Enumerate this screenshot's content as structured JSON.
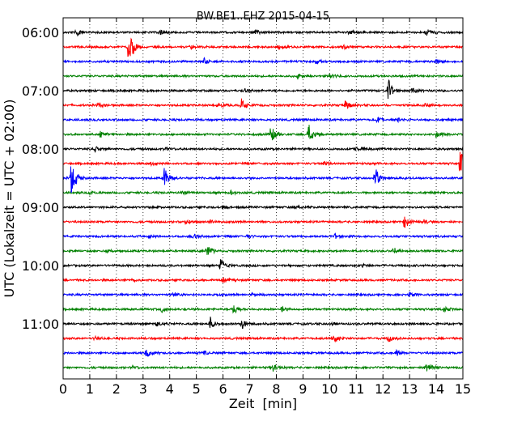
{
  "chart_data": {
    "type": "line",
    "title": "BW.BE1..EHZ 2015-04-15",
    "xlabel": "Zeit  [min]",
    "ylabel": "UTC (Lokalzeit = UTC + 02:00)",
    "xlim": [
      0,
      15
    ],
    "x_ticks": [
      0,
      1,
      2,
      3,
      4,
      5,
      6,
      7,
      8,
      9,
      10,
      11,
      12,
      13,
      14,
      15
    ],
    "x_tick_labels": [
      "0",
      "1",
      "2",
      "3",
      "4",
      "5",
      "6",
      "7",
      "8",
      "9",
      "10",
      "11",
      "12",
      "13",
      "14",
      "15"
    ],
    "y_tick_labels": [
      "06:00",
      "07:00",
      "08:00",
      "09:00",
      "10:00",
      "11:00"
    ],
    "y_tick_trace_index": [
      0,
      4,
      8,
      12,
      16,
      20
    ],
    "trace_interval_min": 15,
    "trace_colors": [
      "#000000",
      "#ff0000",
      "#0000ff",
      "#008000"
    ],
    "grid": "vertical-dotted",
    "traces": [
      {
        "start": "06:00",
        "color": "#000000",
        "events": [
          {
            "t": 0.5,
            "amp": 0.35
          },
          {
            "t": 3.6,
            "amp": 0.25
          },
          {
            "t": 7.2,
            "amp": 0.2
          },
          {
            "t": 10.7,
            "amp": 0.15
          },
          {
            "t": 13.6,
            "amp": 0.35
          }
        ]
      },
      {
        "start": "06:15",
        "color": "#ff0000",
        "events": [
          {
            "t": 2.45,
            "amp": 1.9
          },
          {
            "t": 4.8,
            "amp": 0.15
          },
          {
            "t": 8.1,
            "amp": 0.15
          },
          {
            "t": 10.5,
            "amp": 0.15
          }
        ]
      },
      {
        "start": "06:30",
        "color": "#0000ff",
        "events": [
          {
            "t": 5.3,
            "amp": 0.3
          },
          {
            "t": 9.5,
            "amp": 0.2
          },
          {
            "t": 14.0,
            "amp": 0.25
          }
        ]
      },
      {
        "start": "06:45",
        "color": "#008000",
        "events": [
          {
            "t": 8.8,
            "amp": 0.2
          },
          {
            "t": 10.0,
            "amp": 0.25
          }
        ]
      },
      {
        "start": "07:00",
        "color": "#000000",
        "events": [
          {
            "t": 6.8,
            "amp": 0.15
          },
          {
            "t": 12.2,
            "amp": 0.9
          },
          {
            "t": 13.1,
            "amp": 0.2
          }
        ]
      },
      {
        "start": "07:15",
        "color": "#ff0000",
        "events": [
          {
            "t": 1.3,
            "amp": 0.2
          },
          {
            "t": 5.8,
            "amp": 0.35
          },
          {
            "t": 6.7,
            "amp": 0.5
          },
          {
            "t": 10.6,
            "amp": 0.4
          },
          {
            "t": 13.6,
            "amp": 0.15
          }
        ]
      },
      {
        "start": "07:30",
        "color": "#0000ff",
        "events": [
          {
            "t": 11.8,
            "amp": 0.2
          },
          {
            "t": 12.5,
            "amp": 0.25
          }
        ]
      },
      {
        "start": "07:45",
        "color": "#008000",
        "events": [
          {
            "t": 1.4,
            "amp": 0.25
          },
          {
            "t": 7.8,
            "amp": 0.7
          },
          {
            "t": 9.2,
            "amp": 0.9
          },
          {
            "t": 14.0,
            "amp": 0.3
          }
        ]
      },
      {
        "start": "08:00",
        "color": "#000000",
        "events": [
          {
            "t": 1.2,
            "amp": 0.2
          },
          {
            "t": 3.8,
            "amp": 0.2
          },
          {
            "t": 11.0,
            "amp": 0.2
          }
        ]
      },
      {
        "start": "08:15",
        "color": "#ff0000",
        "events": [
          {
            "t": 3.3,
            "amp": 0.15
          },
          {
            "t": 9.8,
            "amp": 0.15
          },
          {
            "t": 14.9,
            "amp": 1.3
          }
        ]
      },
      {
        "start": "08:30",
        "color": "#0000ff",
        "events": [
          {
            "t": 0.3,
            "amp": 1.6
          },
          {
            "t": 3.8,
            "amp": 0.9
          },
          {
            "t": 11.7,
            "amp": 0.9
          }
        ]
      },
      {
        "start": "08:45",
        "color": "#008000",
        "events": [
          {
            "t": 1.0,
            "amp": 0.15
          },
          {
            "t": 4.5,
            "amp": 0.15
          },
          {
            "t": 6.3,
            "amp": 0.2
          }
        ]
      },
      {
        "start": "09:00",
        "color": "#000000",
        "events": [
          {
            "t": 6.0,
            "amp": 0.15
          },
          {
            "t": 8.7,
            "amp": 0.15
          }
        ]
      },
      {
        "start": "09:15",
        "color": "#ff0000",
        "events": [
          {
            "t": 4.6,
            "amp": 0.2
          },
          {
            "t": 5.5,
            "amp": 0.2
          },
          {
            "t": 12.8,
            "amp": 0.55
          },
          {
            "t": 13.5,
            "amp": 0.2
          }
        ]
      },
      {
        "start": "09:30",
        "color": "#0000ff",
        "events": [
          {
            "t": 3.2,
            "amp": 0.15
          },
          {
            "t": 4.9,
            "amp": 0.2
          },
          {
            "t": 6.9,
            "amp": 0.15
          },
          {
            "t": 10.2,
            "amp": 0.2
          }
        ]
      },
      {
        "start": "09:45",
        "color": "#008000",
        "events": [
          {
            "t": 1.6,
            "amp": 0.25
          },
          {
            "t": 5.4,
            "amp": 0.5
          },
          {
            "t": 12.4,
            "amp": 0.25
          }
        ]
      },
      {
        "start": "10:00",
        "color": "#000000",
        "events": [
          {
            "t": 5.9,
            "amp": 0.6
          },
          {
            "t": 11.2,
            "amp": 0.15
          }
        ]
      },
      {
        "start": "10:15",
        "color": "#ff0000",
        "events": [
          {
            "t": 2.6,
            "amp": 0.15
          },
          {
            "t": 6.0,
            "amp": 0.25
          }
        ]
      },
      {
        "start": "10:30",
        "color": "#0000ff",
        "events": [
          {
            "t": 4.1,
            "amp": 0.2
          },
          {
            "t": 7.1,
            "amp": 0.15
          },
          {
            "t": 13.0,
            "amp": 0.2
          }
        ]
      },
      {
        "start": "10:45",
        "color": "#008000",
        "events": [
          {
            "t": 3.7,
            "amp": 0.3
          },
          {
            "t": 6.4,
            "amp": 0.4
          },
          {
            "t": 8.2,
            "amp": 0.25
          },
          {
            "t": 14.3,
            "amp": 0.25
          }
        ]
      },
      {
        "start": "11:00",
        "color": "#000000",
        "events": [
          {
            "t": 3.5,
            "amp": 0.25
          },
          {
            "t": 5.5,
            "amp": 0.55
          },
          {
            "t": 6.7,
            "amp": 0.5
          },
          {
            "t": 10.1,
            "amp": 0.15
          }
        ]
      },
      {
        "start": "11:15",
        "color": "#ff0000",
        "events": [
          {
            "t": 1.2,
            "amp": 0.15
          },
          {
            "t": 10.1,
            "amp": 0.55
          },
          {
            "t": 12.2,
            "amp": 0.35
          }
        ]
      },
      {
        "start": "11:30",
        "color": "#0000ff",
        "events": [
          {
            "t": 3.1,
            "amp": 0.4
          },
          {
            "t": 5.3,
            "amp": 0.15
          },
          {
            "t": 12.5,
            "amp": 0.2
          }
        ]
      },
      {
        "start": "11:45",
        "color": "#008000",
        "events": [
          {
            "t": 2.6,
            "amp": 0.15
          },
          {
            "t": 7.9,
            "amp": 0.35
          },
          {
            "t": 13.6,
            "amp": 0.4
          }
        ]
      }
    ]
  }
}
